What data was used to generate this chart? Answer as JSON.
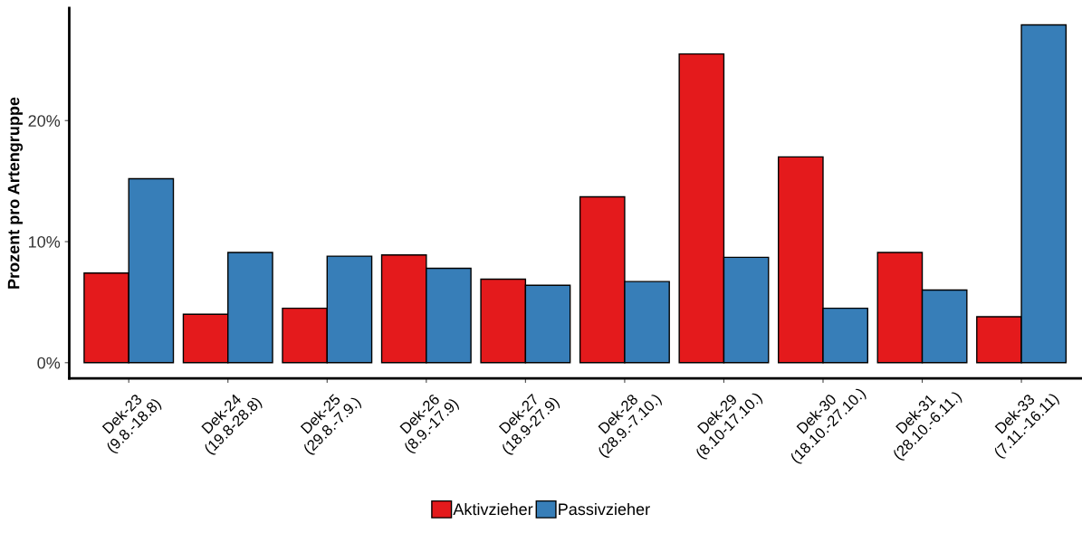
{
  "chart_data": {
    "type": "bar",
    "ylabel": "Prozent pro Artengruppe",
    "categories": [
      "Dek-23\n(9.8.-18.8)",
      "Dek-24\n(19.8-28.8)",
      "Dek-25\n(29.8.-7.9.)",
      "Dek-26\n(8.9.-17.9)",
      "Dek-27\n(18.9-27.9)",
      "Dek-28\n(28.9.-7.10.)",
      "Dek-29\n(8.10-17.10.)",
      "Dek-30\n(18.10.-27.10.)",
      "Dek-31\n(28.10.-6.11.)",
      "Dek-33\n(7.11.-16.11)"
    ],
    "series": [
      {
        "name": "Aktivzieher",
        "color": "#e41a1c",
        "values": [
          7.4,
          4.0,
          4.5,
          8.9,
          6.9,
          13.7,
          25.5,
          17.0,
          9.1,
          3.8
        ]
      },
      {
        "name": "Passivzieher",
        "color": "#377eb8",
        "values": [
          15.2,
          9.1,
          8.8,
          7.8,
          6.4,
          6.7,
          8.7,
          4.5,
          6.0,
          27.9
        ]
      }
    ],
    "ylim": [
      -1.3,
      29.3
    ],
    "yticks": [
      {
        "value": 0,
        "label": "0%"
      },
      {
        "value": 10,
        "label": "10%"
      },
      {
        "value": 20,
        "label": "20%"
      }
    ],
    "grid": false,
    "legend": "bottom"
  }
}
